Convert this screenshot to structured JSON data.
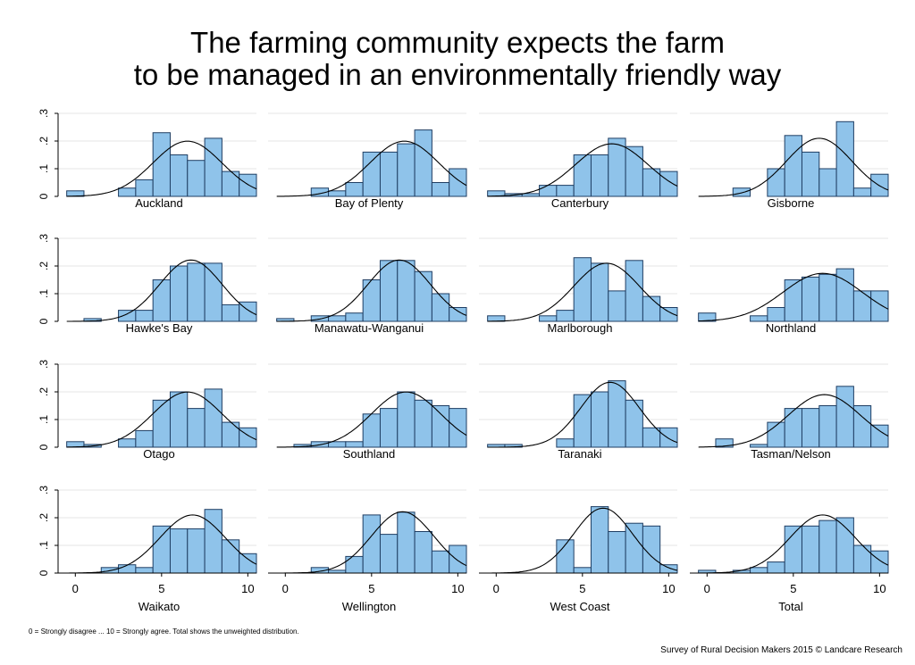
{
  "title_lines": [
    "The farming community expects the farm",
    "to be managed in an environmentally friendly way"
  ],
  "footnote": "0 = Strongly disagree ... 10 = Strongly agree. Total shows the unweighted distribution.",
  "credit": "Survey of Rural Decision Makers 2015 © Landcare Research",
  "colors": {
    "bar_fill": "#8fc3ea",
    "bar_stroke": "#1f3e63",
    "grid": "#e6e6e6",
    "curve": "#000000"
  },
  "chart_data": {
    "type": "bar",
    "subtype": "histogram grid with fitted normal curve",
    "x": [
      0,
      1,
      2,
      3,
      4,
      5,
      6,
      7,
      8,
      9,
      10
    ],
    "xlim": [
      -1,
      10.5
    ],
    "ylim": [
      0,
      0.3
    ],
    "x_ticks": [
      0,
      5,
      10
    ],
    "x_tick_labels": [
      "0",
      "5",
      "10"
    ],
    "y_ticks": [
      0,
      0.1,
      0.2,
      0.3
    ],
    "y_tick_labels": [
      "0",
      ".1",
      ".2",
      ".3"
    ],
    "grid": true,
    "panels": [
      {
        "name": "Auckland",
        "values": [
          0.02,
          0,
          0,
          0.03,
          0.06,
          0.23,
          0.15,
          0.13,
          0.21,
          0.09,
          0.08
        ],
        "mean": 6.5,
        "sd": 2.0
      },
      {
        "name": "Bay of Plenty",
        "values": [
          0,
          0,
          0.03,
          0.02,
          0.05,
          0.16,
          0.16,
          0.19,
          0.24,
          0.05,
          0.1
        ],
        "mean": 6.9,
        "sd": 2.0
      },
      {
        "name": "Canterbury",
        "values": [
          0.02,
          0.01,
          0.01,
          0.04,
          0.04,
          0.15,
          0.15,
          0.21,
          0.18,
          0.1,
          0.09
        ],
        "mean": 6.7,
        "sd": 2.1
      },
      {
        "name": "Gisborne",
        "values": [
          0,
          0,
          0.03,
          0,
          0.1,
          0.22,
          0.16,
          0.1,
          0.27,
          0.03,
          0.08
        ],
        "mean": 6.5,
        "sd": 1.9
      },
      {
        "name": "Hawke's Bay",
        "values": [
          0,
          0.01,
          0,
          0.04,
          0.04,
          0.15,
          0.2,
          0.21,
          0.21,
          0.06,
          0.07
        ],
        "mean": 6.7,
        "sd": 1.8
      },
      {
        "name": "Manawatu-Wanganui",
        "values": [
          0.01,
          0,
          0.02,
          0.02,
          0.03,
          0.15,
          0.22,
          0.22,
          0.18,
          0.1,
          0.05
        ],
        "mean": 6.6,
        "sd": 1.8
      },
      {
        "name": "Marlborough",
        "values": [
          0.02,
          0,
          0,
          0.02,
          0.04,
          0.23,
          0.21,
          0.11,
          0.22,
          0.09,
          0.05
        ],
        "mean": 6.4,
        "sd": 1.9
      },
      {
        "name": "Northland",
        "values": [
          0.03,
          0,
          0,
          0.02,
          0.05,
          0.15,
          0.16,
          0.17,
          0.19,
          0.11,
          0.11
        ],
        "mean": 6.7,
        "sd": 2.3
      },
      {
        "name": "Otago",
        "values": [
          0.02,
          0.01,
          0,
          0.03,
          0.06,
          0.17,
          0.2,
          0.14,
          0.21,
          0.09,
          0.07
        ],
        "mean": 6.5,
        "sd": 2.0
      },
      {
        "name": "Southland",
        "values": [
          0,
          0.01,
          0.02,
          0.02,
          0.02,
          0.12,
          0.14,
          0.2,
          0.17,
          0.15,
          0.14
        ],
        "mean": 7.0,
        "sd": 2.0
      },
      {
        "name": "Taranaki",
        "values": [
          0.01,
          0.01,
          0,
          0,
          0.03,
          0.19,
          0.2,
          0.24,
          0.17,
          0.07,
          0.07
        ],
        "mean": 6.6,
        "sd": 1.7
      },
      {
        "name": "Tasman/Nelson",
        "values": [
          0,
          0.03,
          0,
          0.01,
          0.09,
          0.14,
          0.14,
          0.15,
          0.22,
          0.15,
          0.08
        ],
        "mean": 6.8,
        "sd": 2.1
      },
      {
        "name": "Waikato",
        "values": [
          0,
          0,
          0.02,
          0.03,
          0.02,
          0.17,
          0.16,
          0.16,
          0.23,
          0.12,
          0.07
        ],
        "mean": 6.8,
        "sd": 1.9
      },
      {
        "name": "Wellington",
        "values": [
          0,
          0,
          0.02,
          0.01,
          0.06,
          0.21,
          0.14,
          0.22,
          0.15,
          0.08,
          0.1
        ],
        "mean": 6.8,
        "sd": 1.8
      },
      {
        "name": "West Coast",
        "values": [
          0,
          0,
          0,
          0,
          0.12,
          0.02,
          0.24,
          0.15,
          0.18,
          0.17,
          0.03
        ],
        "mean": 6.2,
        "sd": 1.7
      },
      {
        "name": "Total",
        "values": [
          0.01,
          0,
          0.01,
          0.02,
          0.04,
          0.17,
          0.17,
          0.19,
          0.2,
          0.1,
          0.08
        ],
        "mean": 6.7,
        "sd": 1.9
      }
    ]
  }
}
